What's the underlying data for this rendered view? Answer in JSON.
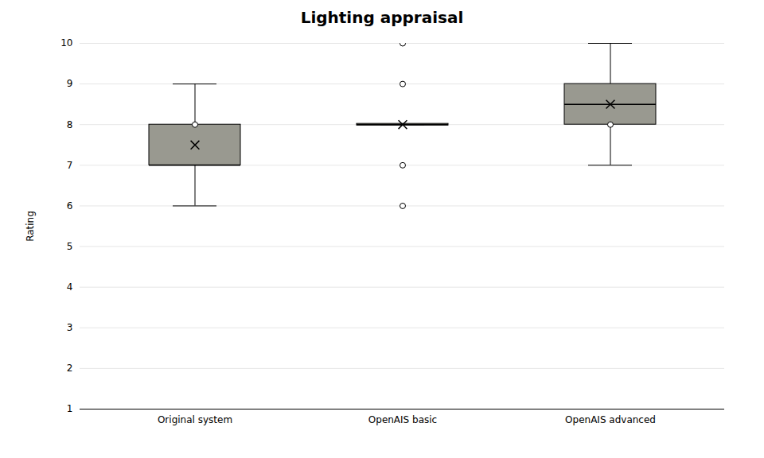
{
  "chart_data": {
    "type": "box",
    "title": "Lighting appraisal",
    "ylabel": "Rating",
    "categories": [
      "Original system",
      "OpenAIS basic",
      "OpenAIS advanced"
    ],
    "boxes": [
      {
        "q1": 7.0,
        "median": 7.0,
        "q3": 8.0,
        "whisker_low": 6.0,
        "whisker_high": 9.0,
        "mean": 7.5,
        "outliers": [
          8.0
        ]
      },
      {
        "q1": 7.98,
        "median": 8.0,
        "q3": 8.02,
        "whisker_low": 8.0,
        "whisker_high": 8.0,
        "mean": 8.0,
        "outliers": [
          6.0,
          7.0,
          9.0,
          10.0
        ]
      },
      {
        "q1": 8.0,
        "median": 8.5,
        "q3": 9.0,
        "whisker_low": 7.0,
        "whisker_high": 10.0,
        "mean": 8.5,
        "outliers": [
          8.0
        ]
      }
    ],
    "color": "#999990",
    "ylim": [
      1,
      10
    ],
    "yticks": [
      1,
      2,
      3,
      4,
      5,
      6,
      7,
      8,
      9,
      10
    ],
    "grid": true
  }
}
